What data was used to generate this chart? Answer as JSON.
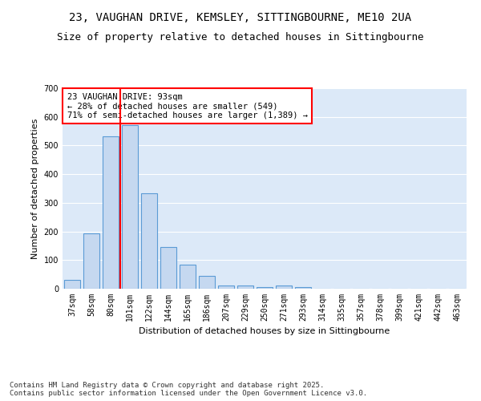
{
  "title1": "23, VAUGHAN DRIVE, KEMSLEY, SITTINGBOURNE, ME10 2UA",
  "title2": "Size of property relative to detached houses in Sittingbourne",
  "xlabel": "Distribution of detached houses by size in Sittingbourne",
  "ylabel": "Number of detached properties",
  "categories": [
    "37sqm",
    "58sqm",
    "80sqm",
    "101sqm",
    "122sqm",
    "144sqm",
    "165sqm",
    "186sqm",
    "207sqm",
    "229sqm",
    "250sqm",
    "271sqm",
    "293sqm",
    "314sqm",
    "335sqm",
    "357sqm",
    "378sqm",
    "399sqm",
    "421sqm",
    "442sqm",
    "463sqm"
  ],
  "values": [
    32,
    193,
    533,
    572,
    332,
    146,
    85,
    45,
    12,
    10,
    5,
    10,
    5,
    0,
    0,
    0,
    0,
    0,
    0,
    0,
    0
  ],
  "bar_color": "#c5d8f0",
  "bar_edge_color": "#5b9bd5",
  "vline_color": "red",
  "annotation_text": "23 VAUGHAN DRIVE: 93sqm\n← 28% of detached houses are smaller (549)\n71% of semi-detached houses are larger (1,389) →",
  "annotation_box_edge": "red",
  "background_color": "#dce9f8",
  "grid_color": "#ffffff",
  "ylim": [
    0,
    700
  ],
  "yticks": [
    0,
    100,
    200,
    300,
    400,
    500,
    600,
    700
  ],
  "footer": "Contains HM Land Registry data © Crown copyright and database right 2025.\nContains public sector information licensed under the Open Government Licence v3.0.",
  "title_fontsize": 10,
  "subtitle_fontsize": 9,
  "axis_label_fontsize": 8,
  "tick_fontsize": 7,
  "annotation_fontsize": 7.5,
  "footer_fontsize": 6.5
}
